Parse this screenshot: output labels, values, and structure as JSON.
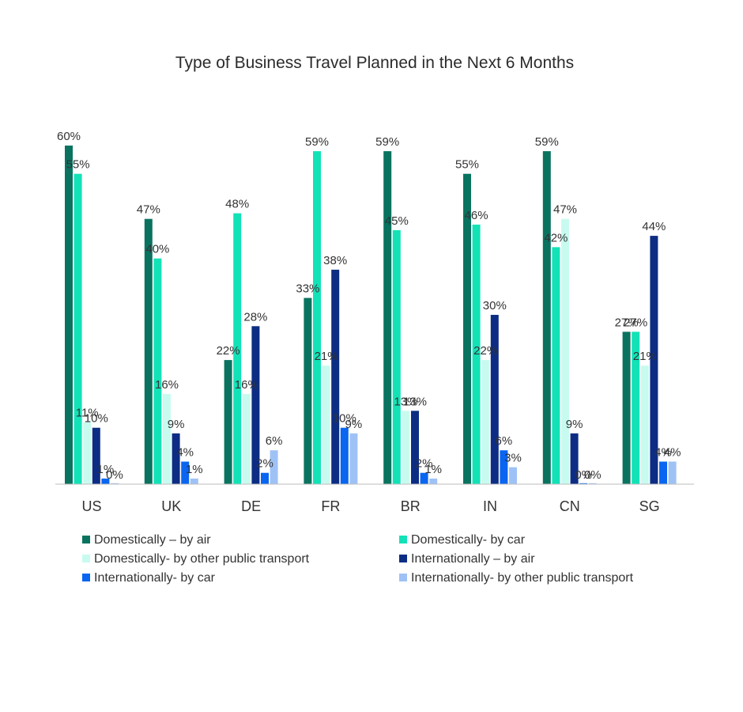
{
  "chart_data": {
    "type": "bar",
    "title": "Type of Business Travel Planned in the Next 6 Months",
    "xlabel": "",
    "ylabel": "",
    "ylim": [
      0,
      60
    ],
    "value_suffix": "%",
    "grid": false,
    "legend_position": "bottom",
    "categories": [
      "US",
      "UK",
      "DE",
      "FR",
      "BR",
      "IN",
      "CN",
      "SG"
    ],
    "series": [
      {
        "name": "Domestically – by air",
        "color": "#0a7360",
        "values": [
          60,
          47,
          22,
          33,
          59,
          55,
          59,
          27
        ]
      },
      {
        "name": "Domestically- by car",
        "color": "#13e2b7",
        "values": [
          55,
          40,
          48,
          59,
          45,
          46,
          42,
          27
        ]
      },
      {
        "name": "Domestically- by other public transport",
        "color": "#c8fbf0",
        "values": [
          11,
          16,
          16,
          21,
          13,
          22,
          47,
          21
        ]
      },
      {
        "name": "Internationally – by air",
        "color": "#0c2d83",
        "values": [
          10,
          9,
          28,
          38,
          13,
          30,
          9,
          44
        ]
      },
      {
        "name": "Internationally- by car",
        "color": "#0a65f0",
        "values": [
          1,
          4,
          2,
          10,
          2,
          6,
          0,
          4
        ]
      },
      {
        "name": "Internationally- by other public transport",
        "color": "#9fc2f6",
        "values": [
          0,
          1,
          6,
          9,
          1,
          3,
          0,
          4
        ]
      }
    ]
  }
}
